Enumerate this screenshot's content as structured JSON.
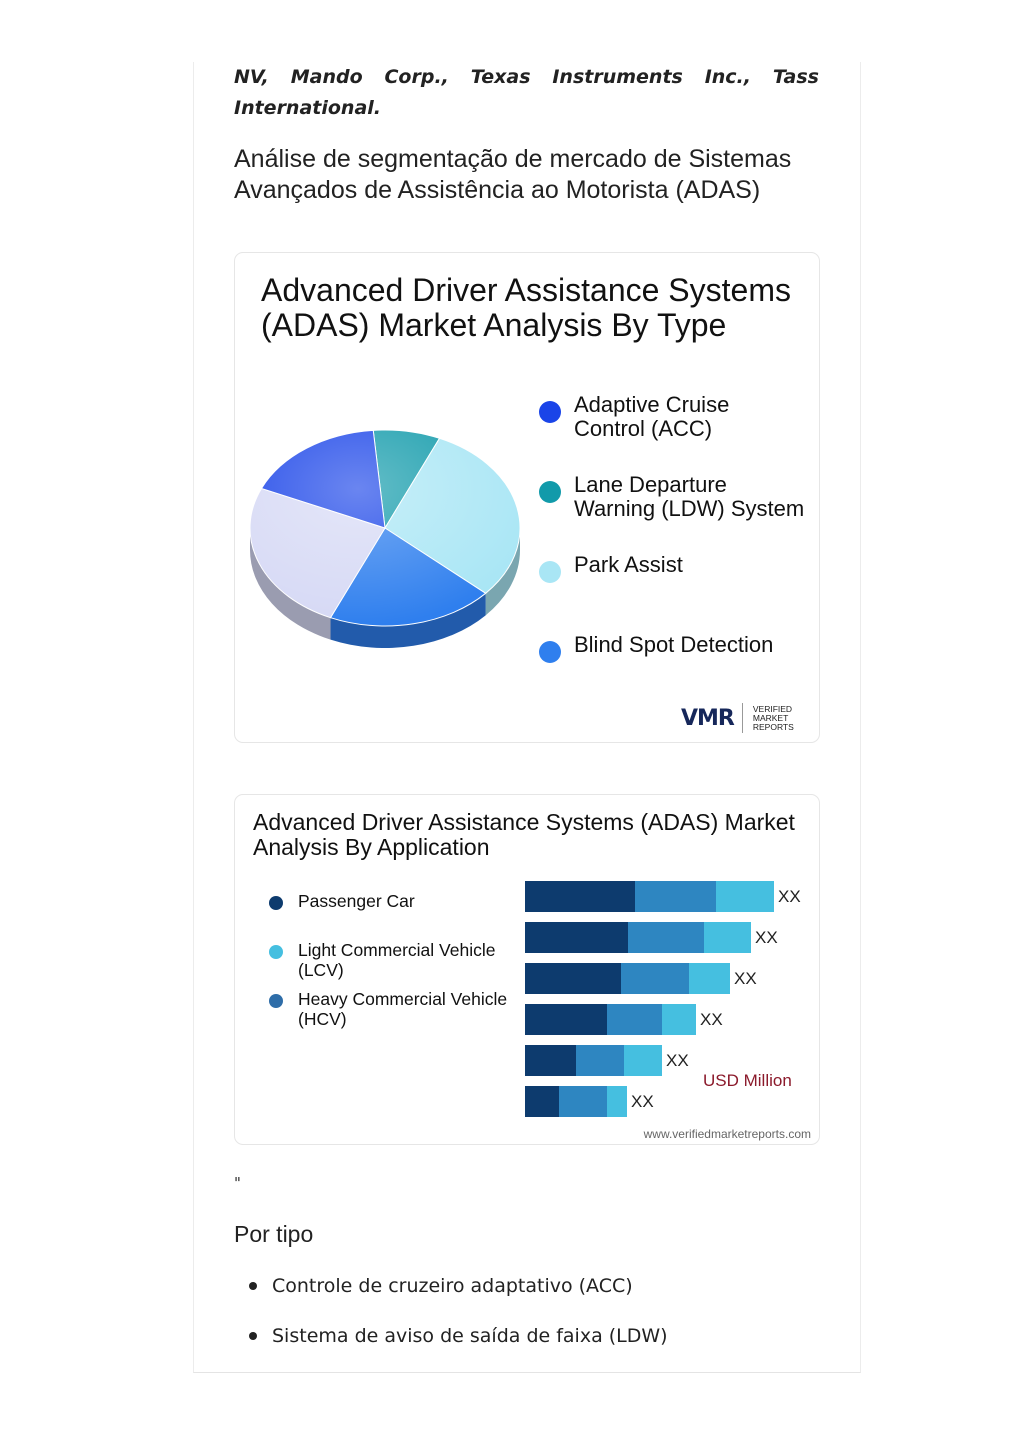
{
  "intro_text": "NV, Mando Corp., Texas Instruments Inc., Tass International.",
  "section_title": "Análise de segmentação de mercado de Sistemas Avançados de Assistência ao Motorista (ADAS)",
  "type_figure": {
    "title": "Advanced Driver Assistance Systems (ADAS) Market Analysis By Type",
    "legend": [
      {
        "label": "Adaptive Cruise\nControl (ACC)",
        "color": "#1a44e8"
      },
      {
        "label": "Lane Departure\nWarning (LDW) System",
        "color": "#119aaa"
      },
      {
        "label": "Park Assist",
        "color": "#a9e6f5"
      },
      {
        "label": "Blind Spot Detection",
        "color": "#2f7fee"
      }
    ],
    "brand_mark": "VMR",
    "brand_text": "VERIFIED\nMARKET\nREPORTS"
  },
  "application_figure": {
    "title": "Advanced Driver Assistance Systems (ADAS) Market Analysis By Application",
    "legend": [
      {
        "label": "Passenger Car",
        "color": "#0d3b6e"
      },
      {
        "label": "Light Commercial Vehicle\n(LCV)",
        "color": "#45bfe0"
      },
      {
        "label": "Heavy Commercial Vehicle\n(HCV)",
        "color": "#2e6da8"
      }
    ],
    "unit_label": "USD Million",
    "footer_url": "www.verifiedmarketreports.com"
  },
  "chart_data": [
    {
      "type": "pie",
      "title": "Advanced Driver Assistance Systems (ADAS) Market Analysis By Type",
      "categories": [
        "Adaptive Cruise Control (ACC)",
        "Lane Departure Warning (LDW) System",
        "Park Assist",
        "Blind Spot Detection"
      ],
      "values": [
        17,
        8,
        30,
        20
      ],
      "note_unlabeled_slice": 25,
      "colors": [
        "#1a44e8",
        "#119aaa",
        "#a9e6f5",
        "#2f7fee",
        "#d6d9f5"
      ]
    },
    {
      "type": "bar",
      "title": "Advanced Driver Assistance Systems (ADAS) Market Analysis By Application",
      "orientation": "horizontal-stacked",
      "data_labels": [
        "XX",
        "XX",
        "XX",
        "XX",
        "XX",
        "XX"
      ],
      "series": [
        {
          "name": "Passenger Car",
          "values": [
            110,
            103,
            96,
            82,
            51,
            34
          ]
        },
        {
          "name": "Heavy Commercial Vehicle (HCV)",
          "values": [
            81,
            76,
            68,
            55,
            48,
            48
          ]
        },
        {
          "name": "Light Commercial Vehicle (LCV)",
          "values": [
            58,
            47,
            41,
            34,
            38,
            20
          ]
        }
      ],
      "colors": [
        "#0d3b6e",
        "#2e86c1",
        "#45bfe0"
      ],
      "unit": "USD Million"
    }
  ],
  "by_type_heading": "Por tipo",
  "by_type_list": [
    "Controle de cruzeiro adaptativo (ACC)",
    "Sistema de aviso de saída de faixa (LDW)"
  ],
  "stray_mark": "\""
}
